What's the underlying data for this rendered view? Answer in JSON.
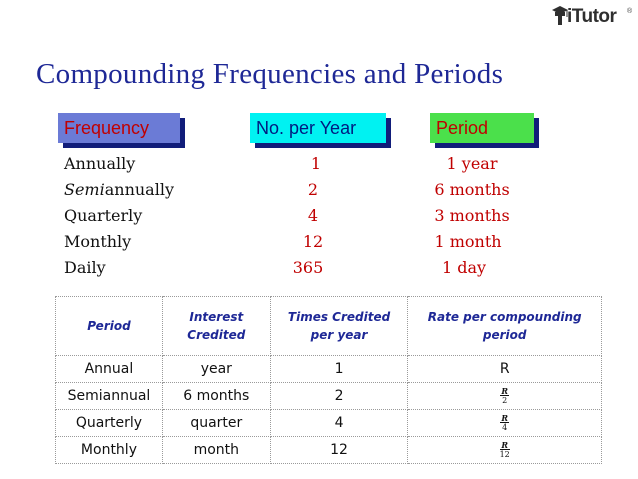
{
  "logo": {
    "text": "iTutor",
    "reg": "®"
  },
  "title": "Compounding Frequencies and Periods",
  "headers": {
    "frequency": "Frequency",
    "no_per_year": "No. per Year",
    "period": "Period"
  },
  "frequencies": [
    {
      "name": "Annually",
      "per_year": "1",
      "period": "1 year"
    },
    {
      "name_italic": "Semi",
      "name_rest": "annually",
      "per_year": "2",
      "period": "6 months"
    },
    {
      "name": "Quarterly",
      "per_year": "4",
      "period": "3 months"
    },
    {
      "name": "Monthly",
      "per_year": "12",
      "period": "1 month"
    },
    {
      "name": "Daily",
      "per_year": "365",
      "period": "1 day"
    }
  ],
  "table": {
    "headers": {
      "period": "Period",
      "interest_credited_1": "Interest",
      "interest_credited_2": "Credited",
      "times_credited_1": "Times Credited",
      "times_credited_2": "per year",
      "rate_1": "Rate per compounding",
      "rate_2": "period"
    },
    "rows": [
      {
        "period": "Annual",
        "credited": "year",
        "times": "1",
        "rate": "R"
      },
      {
        "period": "Semiannual",
        "credited": "6 months",
        "times": "2",
        "rate_num": "R",
        "rate_den": "2"
      },
      {
        "period": "Quarterly",
        "credited": "quarter",
        "times": "4",
        "rate_num": "R",
        "rate_den": "4"
      },
      {
        "period": "Monthly",
        "credited": "month",
        "times": "12",
        "rate_num": "R",
        "rate_den": "12"
      }
    ]
  }
}
